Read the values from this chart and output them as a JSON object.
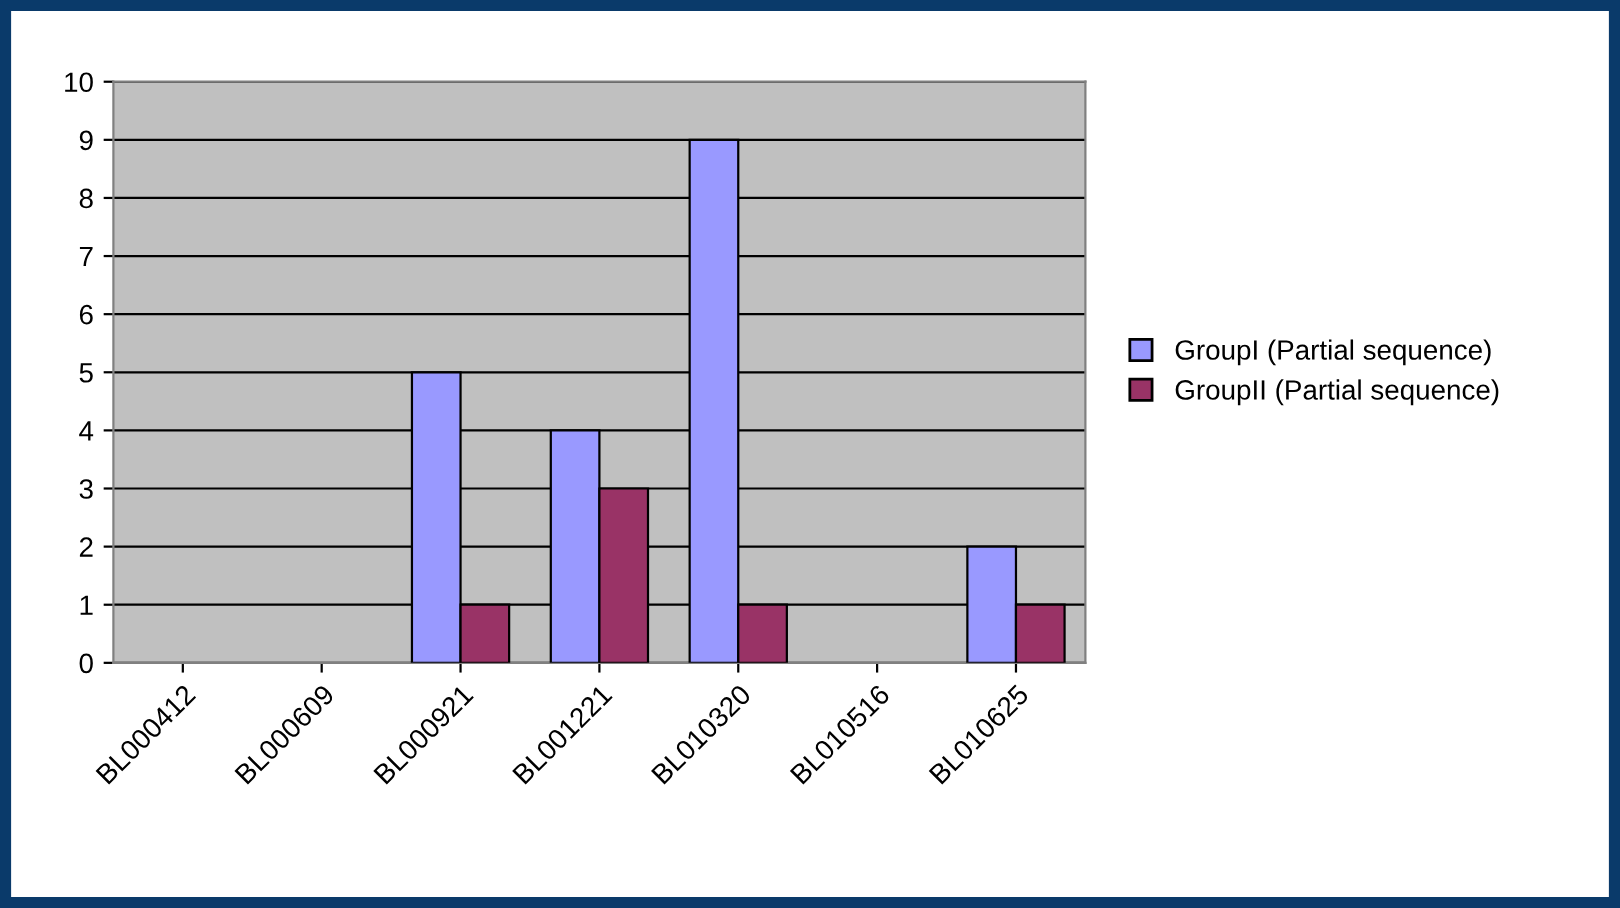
{
  "chart_data": {
    "type": "bar",
    "categories": [
      "BL000412",
      "BL000609",
      "BL000921",
      "BL001221",
      "BL010320",
      "BL010516",
      "BL010625"
    ],
    "series": [
      {
        "name": "GroupI (Partial sequence)",
        "color": "#9999ff",
        "values": [
          null,
          null,
          5,
          4,
          9,
          null,
          2
        ]
      },
      {
        "name": "GroupII (Partial sequence)",
        "color": "#993366",
        "values": [
          null,
          null,
          1,
          3,
          1,
          null,
          1
        ]
      }
    ],
    "ylim": [
      0,
      10
    ],
    "yticks": [
      0,
      1,
      2,
      3,
      4,
      5,
      6,
      7,
      8,
      9,
      10
    ],
    "grid": "y",
    "legend": "right"
  }
}
